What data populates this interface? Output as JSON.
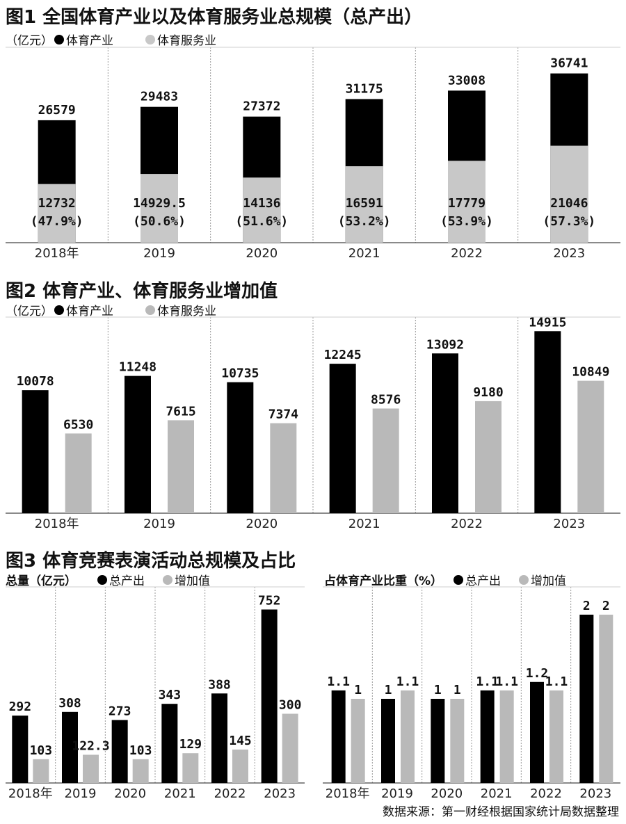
{
  "source": "数据来源：第一财经根据国家统计局数据整理",
  "colors": {
    "black": "#000000",
    "gray": "#b9b9b9",
    "axis": "#444444",
    "divider": "#9a9a9a"
  },
  "figure1": {
    "title": "图1 全国体育产业以及体育服务业总规模（总产出）",
    "unit": "（亿元）",
    "legend": [
      "体育产业",
      "体育服务业"
    ]
  },
  "figure2": {
    "title": "图2 体育产业、体育服务业增加值",
    "unit": "（亿元）",
    "legend": [
      "体育产业",
      "体育服务业"
    ]
  },
  "figure3": {
    "title": "图3 体育竞赛表演活动总规模及占比",
    "left_unit": "总量（亿元）",
    "right_unit": "占体育产业比重（%）",
    "legend": [
      "总产出",
      "增加值"
    ]
  },
  "chart_data": [
    {
      "type": "bar",
      "stacked": "overlay",
      "categories": [
        "2018年",
        "2019",
        "2020",
        "2021",
        "2022",
        "2023"
      ],
      "series": [
        {
          "name": "体育产业",
          "values": [
            26579,
            29483,
            27372,
            31175,
            33008,
            36741
          ],
          "color": "#000000"
        },
        {
          "name": "体育服务业",
          "values": [
            12732,
            14929.5,
            14136,
            16591,
            17779,
            21046
          ],
          "color": "#c8c8c8"
        }
      ],
      "top_labels": [
        "26579",
        "29483",
        "27372",
        "31175",
        "33008",
        "36741"
      ],
      "inner_labels": [
        "12732",
        "14929.5",
        "14136",
        "16591",
        "17779",
        "21046"
      ],
      "share_labels": [
        "(47.9%)",
        "(50.6%)",
        "(51.6%)",
        "(53.2%)",
        "(53.9%)",
        "(57.3%)"
      ],
      "ylim": [
        0,
        40000
      ]
    },
    {
      "type": "bar",
      "categories": [
        "2018年",
        "2019",
        "2020",
        "2021",
        "2022",
        "2023"
      ],
      "series": [
        {
          "name": "体育产业",
          "values": [
            10078,
            11248,
            10735,
            12245,
            13092,
            14915
          ],
          "color": "#000000"
        },
        {
          "name": "体育服务业",
          "values": [
            6530,
            7615,
            7374,
            8576,
            9180,
            10849
          ],
          "color": "#b9b9b9"
        }
      ],
      "labels": [
        [
          "10078",
          "11248",
          "10735",
          "12245",
          "13092",
          "14915"
        ],
        [
          "6530",
          "7615",
          "7374",
          "8576",
          "9180",
          "10849"
        ]
      ],
      "ylim": [
        0,
        15500
      ]
    },
    {
      "type": "bar",
      "categories": [
        "2018年",
        "2019",
        "2020",
        "2021",
        "2022",
        "2023"
      ],
      "series": [
        {
          "name": "总产出",
          "values": [
            292,
            308,
            273,
            343,
            388,
            752
          ],
          "color": "#000000"
        },
        {
          "name": "增加值",
          "values": [
            103,
            122.3,
            103,
            129,
            145,
            300
          ],
          "color": "#b9b9b9"
        }
      ],
      "labels": [
        [
          "292",
          "308",
          "273",
          "343",
          "388",
          "752"
        ],
        [
          "103",
          "122.3",
          "103",
          "129",
          "145",
          "300"
        ]
      ],
      "ylim": [
        0,
        850
      ]
    },
    {
      "type": "bar",
      "categories": [
        "2018年",
        "2019",
        "2020",
        "2021",
        "2022",
        "2023"
      ],
      "series": [
        {
          "name": "总产出",
          "values": [
            1.1,
            1,
            1,
            1.1,
            1.2,
            2
          ],
          "color": "#000000"
        },
        {
          "name": "增加值",
          "values": [
            1,
            1.1,
            1,
            1.1,
            1.1,
            2
          ],
          "color": "#b9b9b9"
        }
      ],
      "labels": [
        [
          "1.1",
          "1",
          "1",
          "1.1",
          "1.2",
          "2"
        ],
        [
          "1",
          "1.1",
          "1",
          "1.1",
          "1.1",
          "2"
        ]
      ],
      "ylim": [
        0,
        2.33
      ]
    }
  ]
}
